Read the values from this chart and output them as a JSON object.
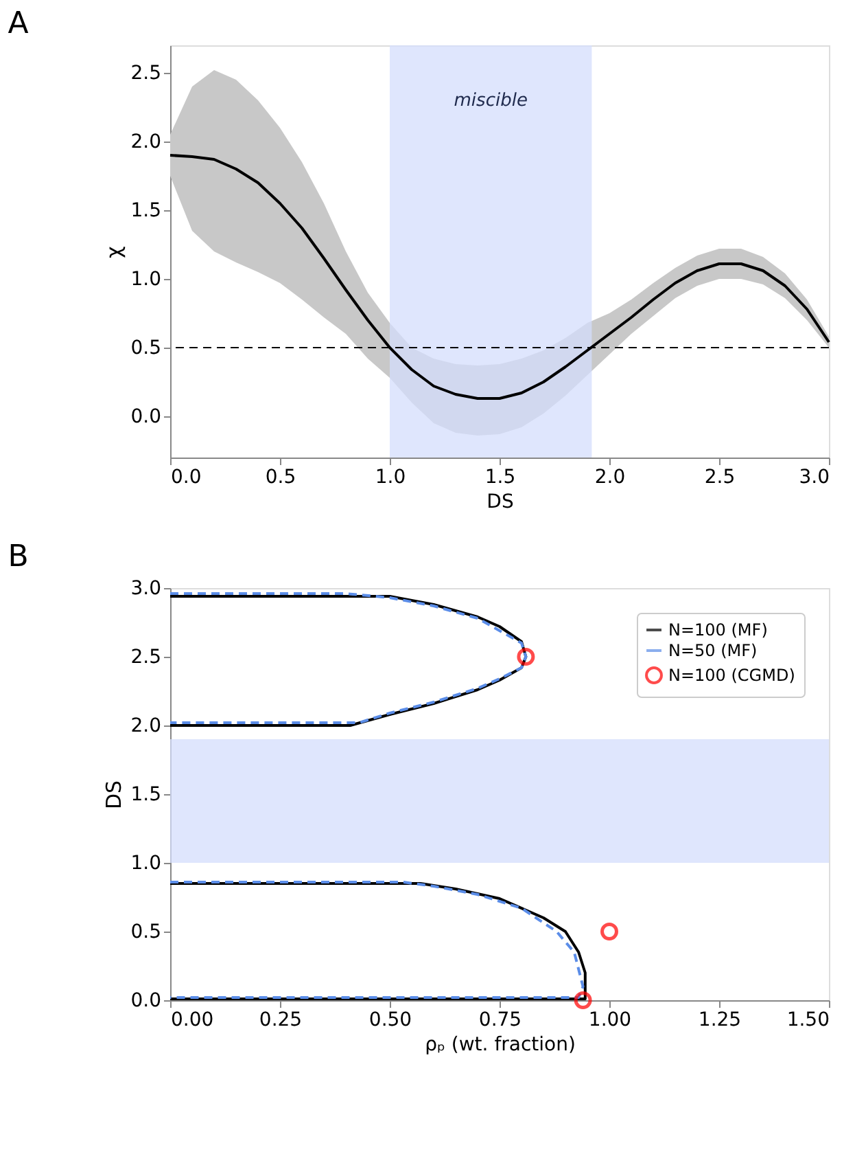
{
  "chart_data": [
    {
      "type": "line",
      "title": "A",
      "xlabel": "DS",
      "ylabel": "χ",
      "xlim": [
        0,
        3
      ],
      "ylim": [
        -0.3,
        2.7
      ],
      "xticks": [
        {
          "value": 0,
          "label": "0.0"
        },
        0.5,
        {
          "value": 1,
          "label": "1.0"
        },
        1.5,
        {
          "value": 2,
          "label": "2.0"
        },
        2.5,
        {
          "value": 3,
          "label": "3.0"
        }
      ],
      "yticks": [
        {
          "value": 0,
          "label": "0.0"
        },
        0.5,
        {
          "value": 1,
          "label": "1.0"
        },
        1.5,
        {
          "value": 2,
          "label": "2.0"
        },
        2.5
      ],
      "grid": false,
      "legend": false,
      "series": [
        {
          "color": "#000000",
          "line_style": "solid",
          "x": [
            0,
            0.1,
            0.2,
            0.3,
            0.4,
            0.5,
            0.6,
            0.7,
            0.8,
            0.9,
            1.0,
            1.1,
            1.2,
            1.3,
            1.4,
            1.5,
            1.6,
            1.7,
            1.8,
            1.9,
            2.0,
            2.1,
            2.2,
            2.3,
            2.4,
            2.5,
            2.6,
            2.7,
            2.8,
            2.9,
            3.0
          ],
          "values": [
            1.9,
            1.89,
            1.87,
            1.8,
            1.7,
            1.55,
            1.37,
            1.15,
            0.92,
            0.7,
            0.5,
            0.34,
            0.22,
            0.16,
            0.13,
            0.13,
            0.17,
            0.25,
            0.36,
            0.48,
            0.6,
            0.72,
            0.85,
            0.97,
            1.06,
            1.11,
            1.11,
            1.06,
            0.95,
            0.78,
            0.54
          ],
          "upper": [
            2.05,
            2.4,
            2.52,
            2.45,
            2.3,
            2.1,
            1.85,
            1.55,
            1.2,
            0.9,
            0.68,
            0.5,
            0.42,
            0.38,
            0.37,
            0.38,
            0.42,
            0.48,
            0.57,
            0.68,
            0.75,
            0.85,
            0.97,
            1.08,
            1.17,
            1.22,
            1.22,
            1.16,
            1.04,
            0.85,
            0.58
          ],
          "lower": [
            1.75,
            1.35,
            1.2,
            1.12,
            1.05,
            0.97,
            0.85,
            0.72,
            0.6,
            0.42,
            0.28,
            0.1,
            -0.05,
            -0.12,
            -0.14,
            -0.13,
            -0.08,
            0.02,
            0.15,
            0.3,
            0.45,
            0.6,
            0.73,
            0.86,
            0.95,
            1.0,
            1.0,
            0.96,
            0.86,
            0.7,
            0.5
          ]
        }
      ],
      "ref_lines": [
        {
          "axis": "y",
          "value": 0.5,
          "color": "#000000",
          "line_style": "dashed"
        }
      ],
      "bands": [
        {
          "axis": "x",
          "from": 1.0,
          "to": 1.92,
          "label": "miscible",
          "color": "#d4defc"
        }
      ]
    },
    {
      "type": "line",
      "title": "B",
      "xlabel": "ρₚ (wt. fraction)",
      "ylabel": "DS",
      "xlim": [
        0,
        1.5
      ],
      "ylim": [
        0,
        3
      ],
      "xticks": [
        {
          "value": 0,
          "label": "0.00"
        },
        0.25,
        {
          "value": 0.5,
          "label": "0.50"
        },
        0.75,
        {
          "value": 1,
          "label": "1.00"
        },
        1.25,
        {
          "value": 1.5,
          "label": "1.50"
        }
      ],
      "yticks": [
        {
          "value": 0,
          "label": "0.0"
        },
        0.5,
        {
          "value": 1,
          "label": "1.0"
        },
        1.5,
        {
          "value": 2,
          "label": "2.0"
        },
        2.5,
        {
          "value": 3,
          "label": "3.0"
        }
      ],
      "grid": false,
      "legend": "top right",
      "series": [
        {
          "name": "N=100 (MF)",
          "color": "#000000",
          "line_style": "solid",
          "x": [
            0,
            0.5,
            0.6,
            0.7,
            0.75,
            0.8,
            0.81,
            0.8,
            0.75,
            0.7,
            0.6,
            0.5,
            0.41,
            0,
            null,
            0,
            0.57,
            0.65,
            0.75,
            0.85,
            0.9,
            0.93,
            0.945,
            0.945,
            0
          ],
          "values": [
            2.94,
            2.94,
            2.88,
            2.79,
            2.72,
            2.61,
            2.5,
            2.42,
            2.33,
            2.26,
            2.16,
            2.08,
            2.0,
            2.0,
            null,
            0.85,
            0.85,
            0.81,
            0.74,
            0.6,
            0.5,
            0.35,
            0.2,
            0.01,
            0.01
          ]
        },
        {
          "name": "N=50 (MF)",
          "color": "#5b8de8",
          "line_style": "dashed",
          "x": [
            0,
            0.4,
            0.5,
            0.6,
            0.7,
            0.8,
            0.81,
            0.8,
            0.75,
            0.7,
            0.6,
            0.5,
            0.43,
            0,
            null,
            0,
            0.53,
            0.6,
            0.7,
            0.8,
            0.88,
            0.92,
            0.94,
            0.93,
            0
          ],
          "values": [
            2.96,
            2.96,
            2.93,
            2.87,
            2.78,
            2.6,
            2.5,
            2.42,
            2.34,
            2.27,
            2.17,
            2.09,
            2.02,
            2.02,
            null,
            0.86,
            0.86,
            0.83,
            0.77,
            0.67,
            0.5,
            0.35,
            0.1,
            0.02,
            0.02
          ]
        },
        {
          "type": "scatter",
          "name": "N=100 (CGMD)",
          "color": "#ff0000",
          "marker": "circle",
          "x": [
            0.81,
            1.0,
            0.94
          ],
          "values": [
            2.5,
            0.5,
            0.0
          ]
        }
      ],
      "bands": [
        {
          "axis": "y",
          "from": 1.0,
          "to": 1.9,
          "color": "#d4defc"
        }
      ]
    }
  ]
}
